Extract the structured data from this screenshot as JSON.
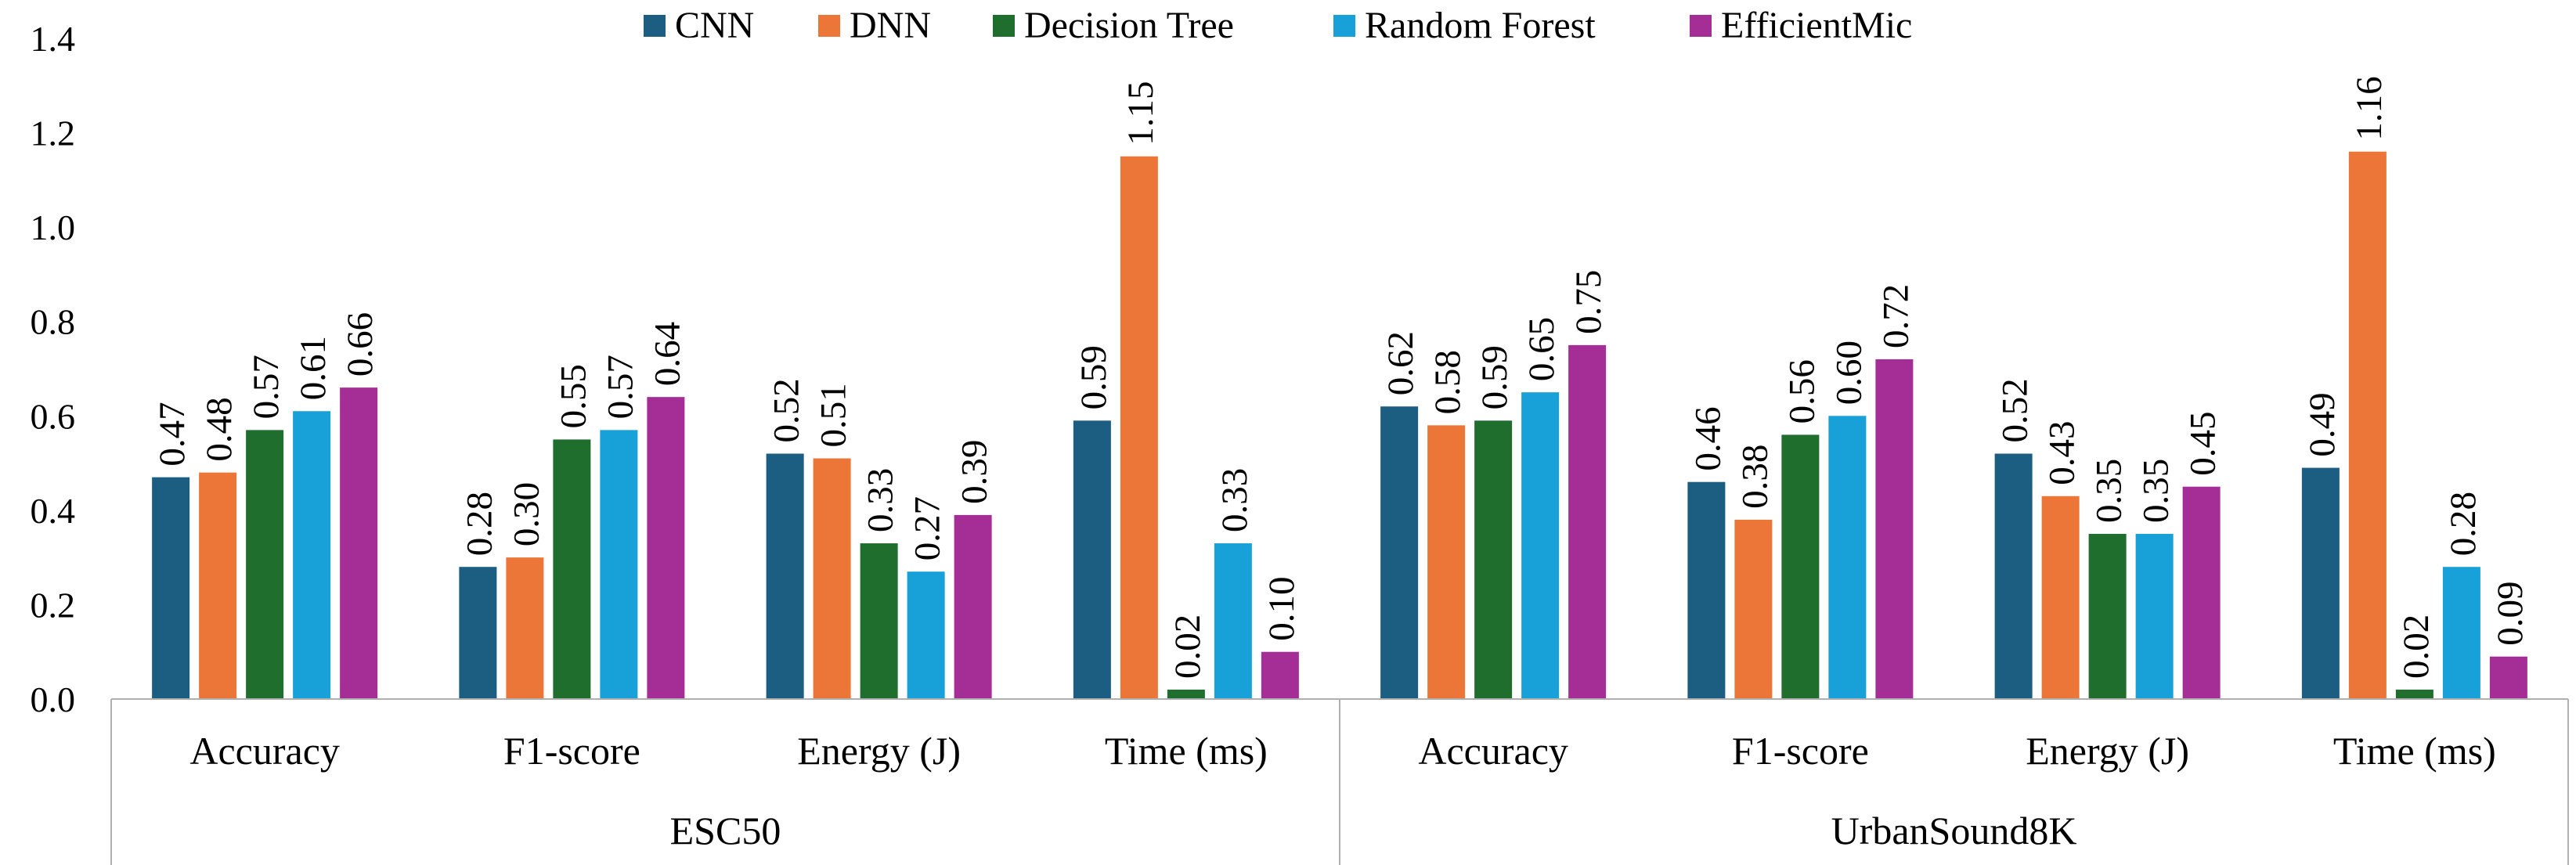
{
  "chart_data": {
    "type": "bar",
    "groups": [
      {
        "name": "ESC50",
        "categories": [
          "Accuracy",
          "F1-score",
          "Energy (J)",
          "Time (ms)"
        ]
      },
      {
        "name": "UrbanSound8K",
        "categories": [
          "Accuracy",
          "F1-score",
          "Energy (J)",
          "Time (ms)"
        ]
      }
    ],
    "series": [
      {
        "name": "CNN",
        "color": "#1b5e82",
        "values": [
          0.47,
          0.28,
          0.52,
          0.59,
          0.62,
          0.46,
          0.52,
          0.49
        ]
      },
      {
        "name": "DNN",
        "color": "#ec7638",
        "values": [
          0.48,
          0.3,
          0.51,
          1.15,
          0.58,
          0.38,
          0.43,
          1.16
        ]
      },
      {
        "name": "Decision Tree",
        "color": "#1f6e2e",
        "values": [
          0.57,
          0.55,
          0.33,
          0.02,
          0.59,
          0.56,
          0.35,
          0.02
        ]
      },
      {
        "name": "Random Forest",
        "color": "#18a0d8",
        "values": [
          0.61,
          0.57,
          0.27,
          0.33,
          0.65,
          0.6,
          0.35,
          0.28
        ]
      },
      {
        "name": "EfficientMic",
        "color": "#a52d96",
        "values": [
          0.66,
          0.64,
          0.39,
          0.1,
          0.75,
          0.72,
          0.45,
          0.09
        ]
      }
    ],
    "ylim": [
      0,
      1.4
    ],
    "ytick_labels": [
      "0.0",
      "0.2",
      "0.4",
      "0.6",
      "0.8",
      "1.0",
      "1.2",
      "1.4"
    ],
    "legend_position": "top",
    "grid": false,
    "data_labels": true
  }
}
